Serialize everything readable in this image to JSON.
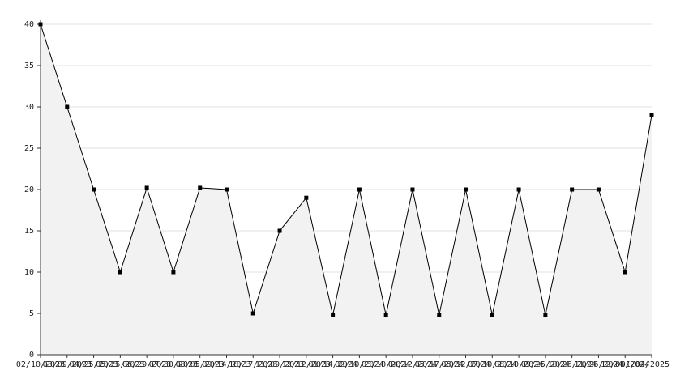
{
  "chart_data": {
    "type": "area",
    "categories": [
      "02/10/2023",
      "03/09/2023",
      "04/25/2023",
      "05/25/2023",
      "06/29/2023",
      "07/30/2023",
      "08/05/2023",
      "09/14/2023",
      "10/17/2023",
      "11/09/2023",
      "12/12/2023",
      "01/14/2024",
      "02/10/2024",
      "03/10/2024",
      "04/12/2024",
      "05/17/2024",
      "06/12/2024",
      "07/10/2024",
      "08/10/2024",
      "09/25/2024",
      "10/26/2024",
      "11/26/2024",
      "12/06/2024",
      "01/04/2025"
    ],
    "values": [
      40,
      30,
      20,
      10,
      20.2,
      10,
      20.2,
      20,
      5,
      15,
      19,
      4.8,
      20,
      4.8,
      20,
      4.8,
      20,
      4.8,
      20,
      4.8,
      20,
      20,
      10,
      29
    ],
    "color": "#000000",
    "fill": "#f2f2f2",
    "ylim": [
      0,
      40
    ],
    "yticks": [
      0,
      5,
      10,
      15,
      20,
      25,
      30,
      35,
      40
    ],
    "grid": true
  }
}
